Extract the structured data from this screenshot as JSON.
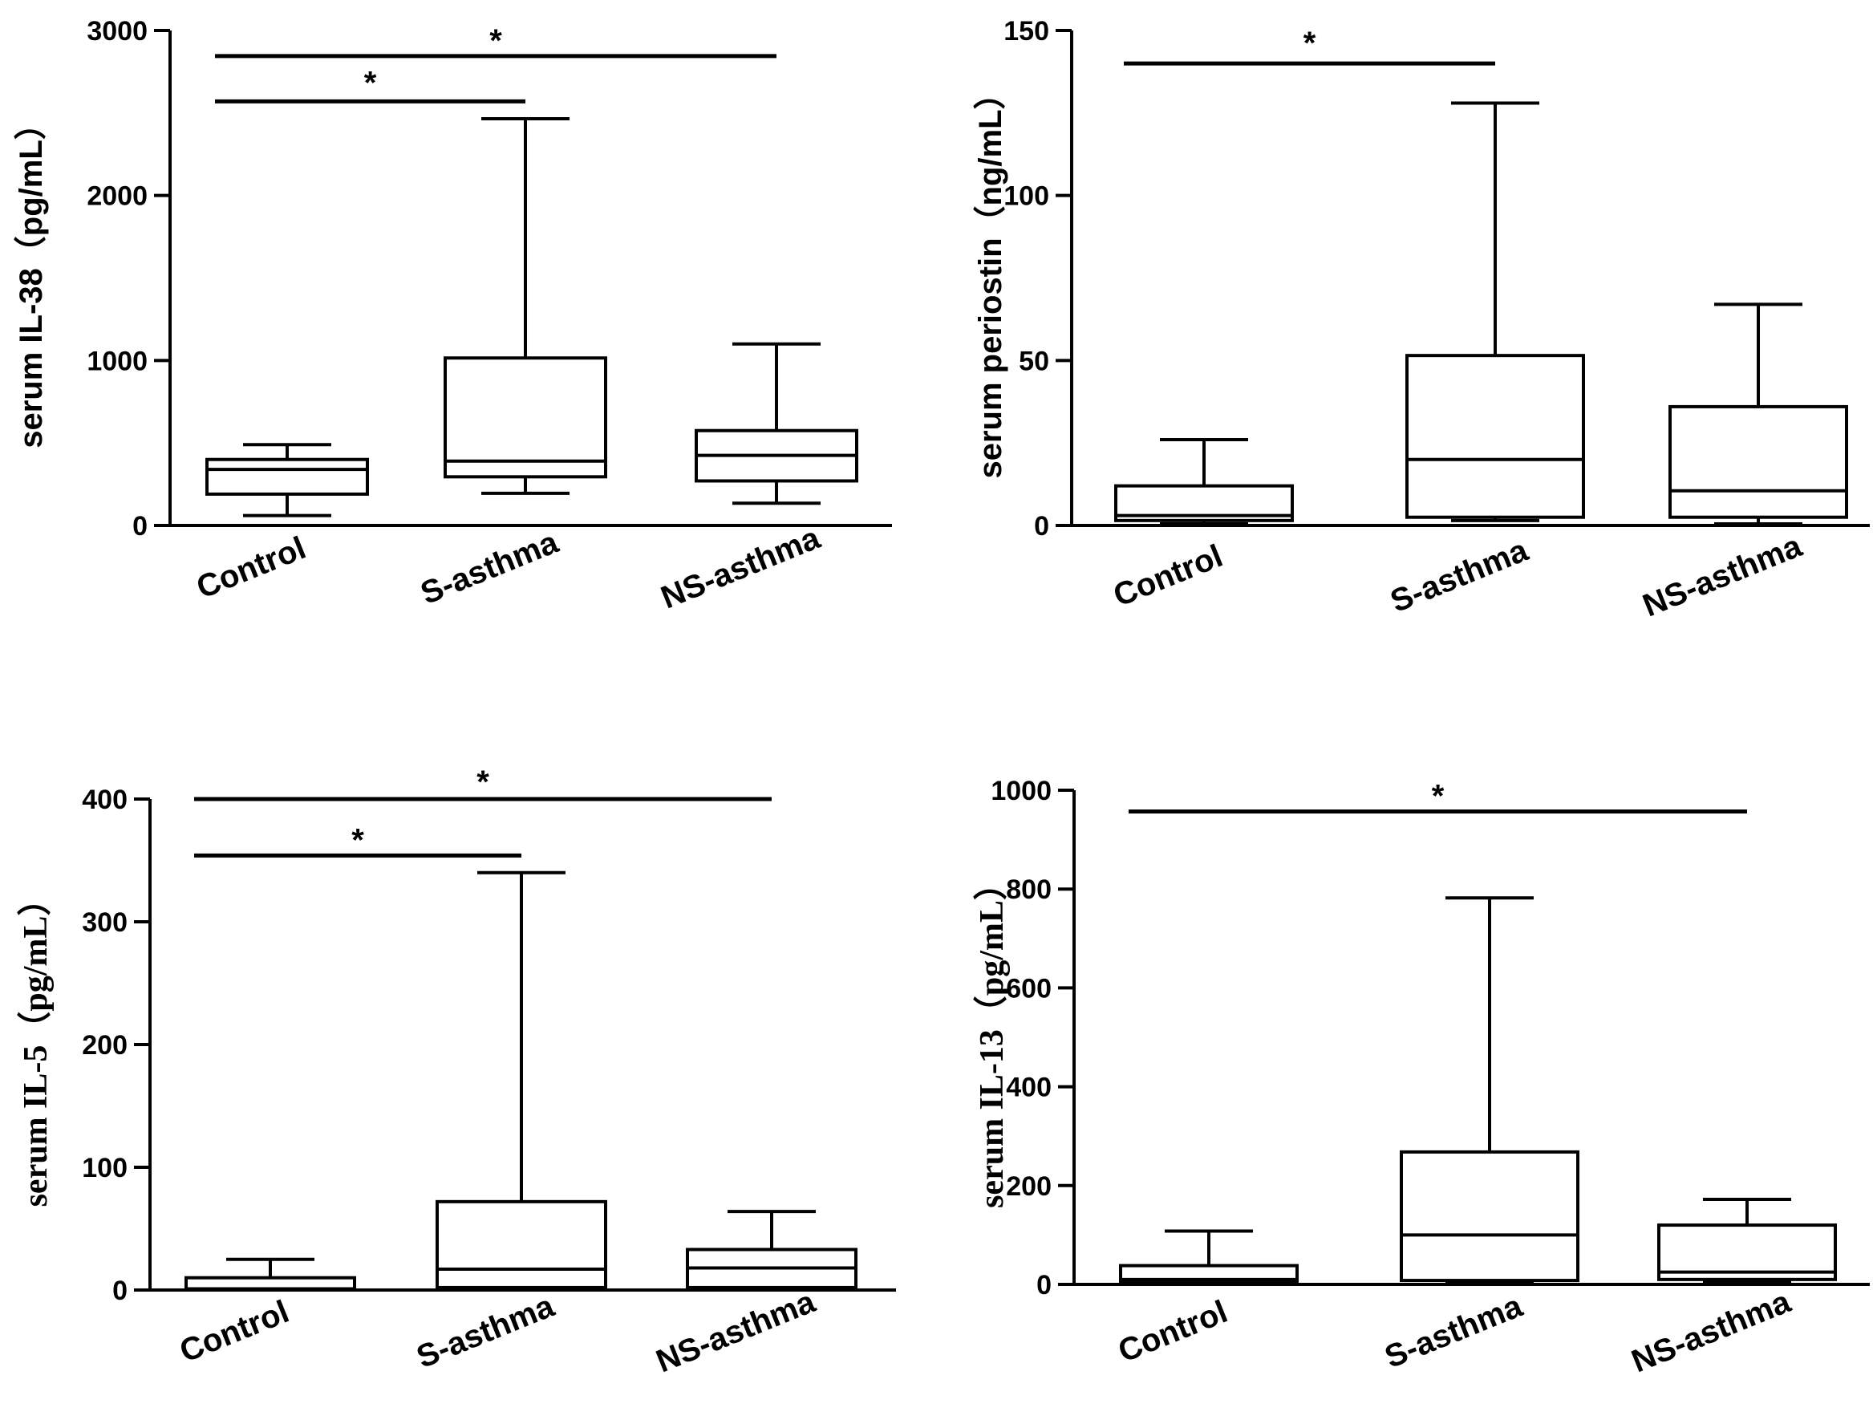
{
  "chart_data": [
    {
      "type": "box",
      "title": "",
      "xlabel": "",
      "ylabel": "serum IL-38（pg/mL）",
      "ylim": [
        0,
        3000
      ],
      "yticks": [
        0,
        1000,
        2000,
        3000
      ],
      "tick_labels": [
        "0",
        "1000",
        "2000",
        "3000"
      ],
      "categories": [
        "Control",
        "S-asthma",
        "NS-asthma"
      ],
      "boxes": [
        {
          "name": "Control",
          "min": 60,
          "q1": 190,
          "median": 340,
          "q3": 400,
          "max": 490
        },
        {
          "name": "S-asthma",
          "min": 195,
          "q1": 295,
          "median": 390,
          "q3": 1015,
          "max": 2465
        },
        {
          "name": "NS-asthma",
          "min": 135,
          "q1": 270,
          "median": 425,
          "q3": 575,
          "max": 1100
        }
      ],
      "significance": [
        {
          "from": 0,
          "to": 1,
          "y": 2570,
          "label": "*"
        },
        {
          "from": 0,
          "to": 2,
          "y": 2845,
          "label": "*"
        }
      ]
    },
    {
      "type": "box",
      "title": "",
      "xlabel": "",
      "ylabel": "serum periostin（ng/mL）",
      "ylim": [
        0,
        150
      ],
      "yticks": [
        0,
        50,
        100,
        150
      ],
      "tick_labels": [
        "0",
        "50",
        "100",
        "150"
      ],
      "categories": [
        "Control",
        "S-asthma",
        "NS-asthma"
      ],
      "boxes": [
        {
          "name": "Control",
          "min": 0.5,
          "q1": 1.5,
          "median": 3,
          "q3": 12,
          "max": 26
        },
        {
          "name": "S-asthma",
          "min": 1.5,
          "q1": 2.5,
          "median": 20,
          "q3": 51.5,
          "max": 128
        },
        {
          "name": "NS-asthma",
          "min": 0.5,
          "q1": 2.5,
          "median": 10.5,
          "q3": 36,
          "max": 67
        }
      ],
      "significance": [
        {
          "from": 0,
          "to": 1,
          "y": 140,
          "label": "*"
        }
      ]
    },
    {
      "type": "box",
      "title": "",
      "xlabel": "",
      "ylabel": "serum IL-5（pg/mL）",
      "ylim": [
        0,
        400
      ],
      "yticks": [
        0,
        100,
        200,
        300,
        400
      ],
      "tick_labels": [
        "0",
        "100",
        "200",
        "300",
        "400"
      ],
      "categories": [
        "Control",
        "S-asthma",
        "NS-asthma"
      ],
      "boxes": [
        {
          "name": "Control",
          "min": 0,
          "q1": 0,
          "median": 1,
          "q3": 10,
          "max": 25
        },
        {
          "name": "S-asthma",
          "min": 0.5,
          "q1": 2,
          "median": 17,
          "q3": 72,
          "max": 340
        },
        {
          "name": "NS-asthma",
          "min": 0.5,
          "q1": 2,
          "median": 18,
          "q3": 33,
          "max": 64
        }
      ],
      "significance": [
        {
          "from": 0,
          "to": 1,
          "y": 354,
          "label": "*"
        },
        {
          "from": 0,
          "to": 2,
          "y": 400,
          "label": "*"
        }
      ]
    },
    {
      "type": "box",
      "title": "",
      "xlabel": "",
      "ylabel": "serum IL-13（pg/mL）",
      "ylim": [
        0,
        1000
      ],
      "yticks": [
        0,
        200,
        400,
        600,
        800,
        1000
      ],
      "tick_labels": [
        "0",
        "200",
        "400",
        "600",
        "800",
        "1000"
      ],
      "categories": [
        "Control",
        "S-asthma",
        "NS-asthma"
      ],
      "boxes": [
        {
          "name": "Control",
          "min": 2,
          "q1": 5,
          "median": 10,
          "q3": 38,
          "max": 108
        },
        {
          "name": "S-asthma",
          "min": 5,
          "q1": 8,
          "median": 100,
          "q3": 268,
          "max": 782
        },
        {
          "name": "NS-asthma",
          "min": 5,
          "q1": 10,
          "median": 25,
          "q3": 120,
          "max": 172
        }
      ],
      "significance": [
        {
          "from": 0,
          "to": 2,
          "y": 957,
          "label": "*"
        }
      ]
    }
  ]
}
